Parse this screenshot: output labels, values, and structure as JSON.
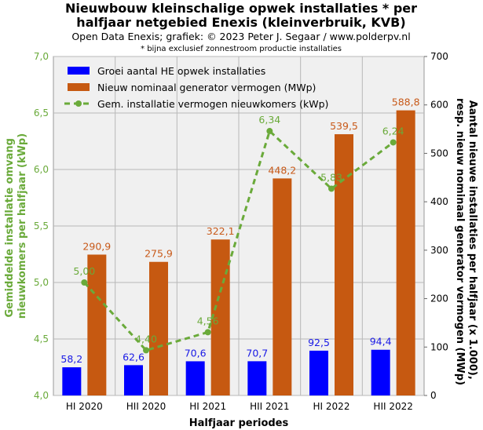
{
  "chart_data": {
    "type": "bar",
    "title_line1": "Nieuwbouw kleinschalige  opwek installaties  * per",
    "title_line2": "halfjaar netgebied Enexis (kleinverbruik,  KVB)",
    "subtitle": "Open Data Enexis;  grafiek: © 2023 Peter J. Segaar / www.polderpv.nl",
    "footnote": "* bijna exclusief zonnestroom productie installaties",
    "categories": [
      "HI 2020",
      "HII 2020",
      "HI 2021",
      "HII 2021",
      "HI 2022",
      "HII 2022"
    ],
    "xlabel": "Halfjaar periodes",
    "ylabel_left": [
      "Gemiddelde installatie omvang",
      "nieuwkomers  per halfjaar (kWp)"
    ],
    "ylabel_right": [
      "Aantal nieuwe installaties per halfjaar (x 1.000),",
      "resp. nieuw nominaal generator vermogen (MWp)"
    ],
    "ylim_left": [
      4.0,
      7.0
    ],
    "yticks_left": [
      "4,0",
      "4,5",
      "5,0",
      "5,5",
      "6,0",
      "6,5",
      "7,0"
    ],
    "ylim_right": [
      0,
      700
    ],
    "yticks_right": [
      "0",
      "100",
      "200",
      "300",
      "400",
      "500",
      "600",
      "700"
    ],
    "legend_position": "top-left",
    "grid": true,
    "series": [
      {
        "name": "Groei aantal HE opwek installaties",
        "kind": "bar",
        "axis": "right",
        "color": "#0000ff",
        "values": [
          58.2,
          62.6,
          70.6,
          70.7,
          92.5,
          94.4
        ],
        "labels": [
          "58,2",
          "62,6",
          "70,6",
          "70,7",
          "92,5",
          "94,4"
        ]
      },
      {
        "name": "Nieuw nominaal generator vermogen (MWp)",
        "kind": "bar",
        "axis": "right",
        "color": "#c65911",
        "values": [
          290.9,
          275.9,
          322.1,
          448.2,
          539.5,
          588.8
        ],
        "labels": [
          "290,9",
          "275,9",
          "322,1",
          "448,2",
          "539,5",
          "588,8"
        ]
      },
      {
        "name": "Gem. installatie vermogen nieuwkomers (kWp)",
        "kind": "line",
        "axis": "left",
        "color": "#6aaa3a",
        "values": [
          5.0,
          4.4,
          4.56,
          6.34,
          5.83,
          6.24
        ],
        "labels": [
          "5,00",
          "4,40",
          "4,56",
          "6,34",
          "5,83",
          "6,24"
        ]
      }
    ]
  }
}
